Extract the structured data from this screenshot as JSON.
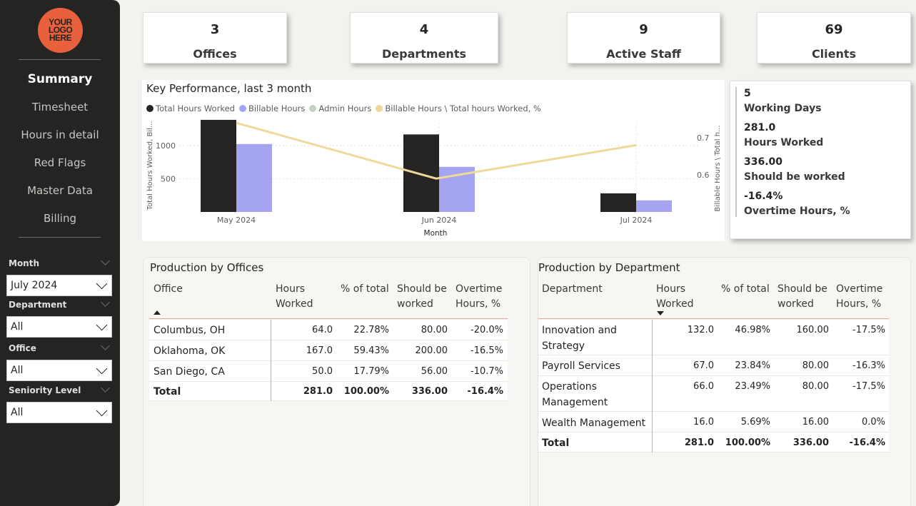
{
  "sidebar": {
    "logo_text": "YOUR LOGO HERE",
    "nav": [
      "Summary",
      "Timesheet",
      "Hours in detail",
      "Red Flags",
      "Master Data",
      "Billing"
    ],
    "active_nav": "Summary",
    "filters": [
      {
        "label": "Month",
        "value": "July 2024"
      },
      {
        "label": "Department",
        "value": "All"
      },
      {
        "label": "Office",
        "value": "All"
      },
      {
        "label": "Seniority Level",
        "value": "All"
      }
    ]
  },
  "kpis": [
    {
      "value": "3",
      "label": "Offices"
    },
    {
      "value": "4",
      "label": "Departments"
    },
    {
      "value": "9",
      "label": "Active Staff"
    },
    {
      "value": "69",
      "label": "Clients"
    }
  ],
  "stats": [
    {
      "value": "5",
      "label": "Working Days"
    },
    {
      "value": "281.0",
      "label": "Hours Worked"
    },
    {
      "value": "336.00",
      "label": "Should be worked"
    },
    {
      "value": "-16.4%",
      "label": "Overtime Hours, %"
    }
  ],
  "chart_data": {
    "type": "bar",
    "title": "Key Performance, last 3 month",
    "xlabel": "Month",
    "ylabel": "Total Hours Worked, Bil...",
    "y2label": "Billable Hours \\ Total h...",
    "categories": [
      "May 2024",
      "Jun 2024",
      "Jul 2024"
    ],
    "series": [
      {
        "name": "Total Hours Worked",
        "type": "bar",
        "color": "#252423",
        "values": [
          1390,
          1170,
          281
        ]
      },
      {
        "name": "Billable Hours",
        "type": "bar",
        "color": "#a5a4f0",
        "values": [
          1025,
          680,
          175
        ]
      },
      {
        "name": "Admin Hours",
        "type": "bar",
        "color": "#c5d3c0",
        "values": [
          0,
          0,
          0
        ]
      },
      {
        "name": "Billable Hours \\ Total hours Worked, %",
        "type": "line",
        "axis": "right",
        "color": "#eed89a",
        "values": [
          0.74,
          0.59,
          0.68
        ]
      }
    ],
    "y_ticks": [
      500,
      1000
    ],
    "y2_ticks": [
      0.6,
      0.7
    ],
    "ylim": [
      0,
      1400
    ],
    "y2lim": [
      0.5,
      0.75
    ],
    "grid": true,
    "legend": "top-left"
  },
  "offices_table": {
    "title": "Production by Offices",
    "headers": [
      "Office",
      "Hours Worked",
      "% of total",
      "Should be worked",
      "Overtime Hours, %"
    ],
    "rows": [
      [
        "Columbus, OH",
        "64.0",
        "22.78%",
        "80.00",
        "-20.0%"
      ],
      [
        "Oklahoma, OK",
        "167.0",
        "59.43%",
        "200.00",
        "-16.5%"
      ],
      [
        "San Diego, CA",
        "50.0",
        "17.79%",
        "56.00",
        "-10.7%"
      ]
    ],
    "total": [
      "Total",
      "281.0",
      "100.00%",
      "336.00",
      "-16.4%"
    ]
  },
  "dept_table": {
    "title": "Production by Department",
    "headers": [
      "Department",
      "Hours Worked",
      "% of total",
      "Should be worked",
      "Overtime Hours, %"
    ],
    "rows": [
      [
        "Innovation and Strategy",
        "132.0",
        "46.98%",
        "160.00",
        "-17.5%"
      ],
      [
        "Payroll Services",
        "67.0",
        "23.84%",
        "80.00",
        "-16.3%"
      ],
      [
        "Operations Management",
        "66.0",
        "23.49%",
        "80.00",
        "-17.5%"
      ],
      [
        "Wealth Management",
        "16.0",
        "5.69%",
        "16.00",
        "0.0%"
      ]
    ],
    "total": [
      "Total",
      "281.0",
      "100.00%",
      "336.00",
      "-16.4%"
    ]
  }
}
